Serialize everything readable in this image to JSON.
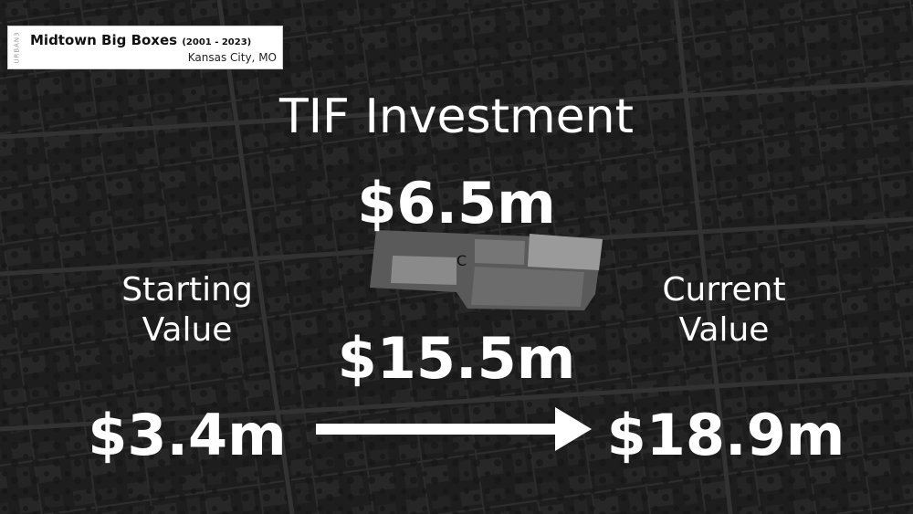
{
  "map_label": {
    "brand": "URBAN3",
    "title": "Midtown Big Boxes",
    "years": "(2001 - 2023)",
    "location": "Kansas City, MO"
  },
  "heading": "TIF Investment",
  "tif_amount": "$6.5m",
  "starting": {
    "label_line1": "Starting",
    "label_line2": "Value",
    "amount": "$3.4m"
  },
  "current": {
    "label_line1": "Current",
    "label_line2": "Value",
    "amount": "$18.9m"
  },
  "middle_amount": "$15.5m",
  "site_marker": "C",
  "arrow_icon": "right-arrow-icon",
  "colors": {
    "text": "#ffffff",
    "background": "#1b1b1b",
    "label_box": "#ffffff"
  }
}
